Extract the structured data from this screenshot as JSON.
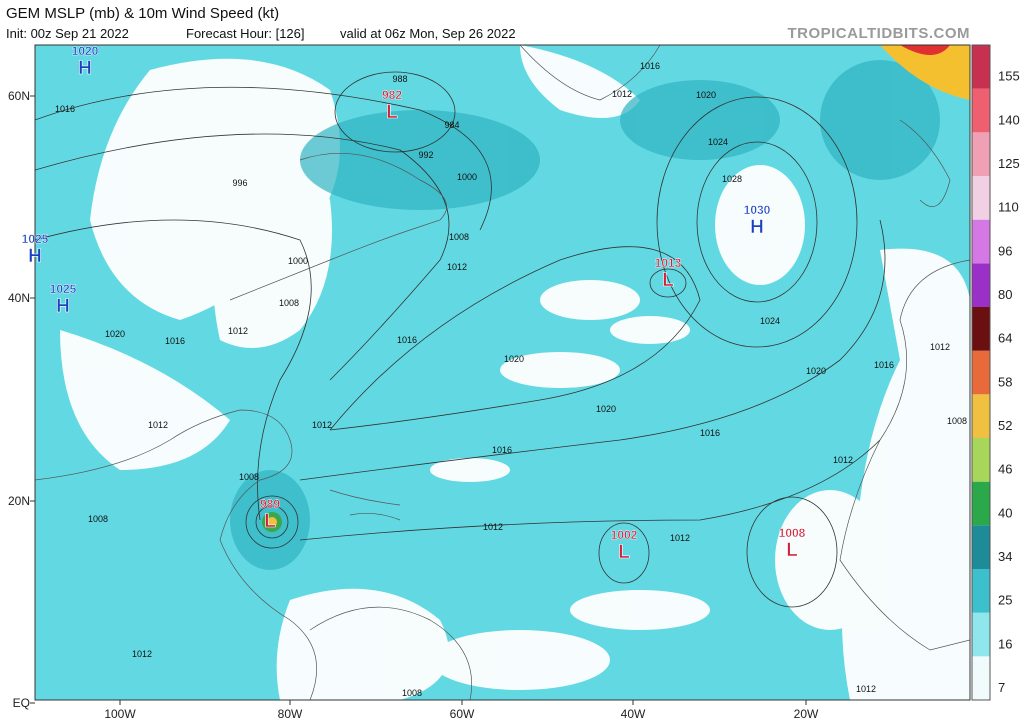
{
  "header": {
    "title": "GEM MSLP (mb) & 10m Wind Speed (kt)",
    "init": "Init: 00z Sep 21 2022",
    "forecast_hour": "Forecast Hour: [126]",
    "valid": "valid at 06z Mon, Sep 26 2022",
    "source": "TROPICALTIDBITS.COM"
  },
  "map": {
    "lat_labels": [
      "60N",
      "40N",
      "20N",
      "EQ"
    ],
    "lon_labels": [
      "100W",
      "80W",
      "60W",
      "40W",
      "20W"
    ],
    "centers": [
      {
        "type": "H",
        "pressure": "1020"
      },
      {
        "type": "H",
        "pressure": "1025"
      },
      {
        "type": "H",
        "pressure": "1025"
      },
      {
        "type": "L",
        "pressure": "982"
      },
      {
        "type": "H",
        "pressure": "1030"
      },
      {
        "type": "L",
        "pressure": "1013"
      },
      {
        "type": "L",
        "pressure": "989"
      },
      {
        "type": "L",
        "pressure": "1002"
      },
      {
        "type": "L",
        "pressure": "1008"
      }
    ],
    "isobar_labels": [
      "1016",
      "996",
      "992",
      "1000",
      "988",
      "984",
      "1016",
      "1020",
      "1024",
      "1028",
      "1024",
      "1020",
      "1016",
      "1016",
      "1020",
      "1020",
      "1016",
      "1012",
      "1008",
      "1000",
      "1008",
      "1012",
      "1016",
      "1020",
      "1012",
      "1012",
      "1016",
      "1012",
      "1012",
      "1008",
      "1008",
      "1012",
      "1008",
      "1012",
      "1012",
      "1008",
      "1012",
      "1012"
    ]
  },
  "colorbar": {
    "ticks": [
      7,
      16,
      25,
      34,
      40,
      46,
      52,
      58,
      64,
      80,
      96,
      110,
      125,
      140,
      155
    ]
  }
}
